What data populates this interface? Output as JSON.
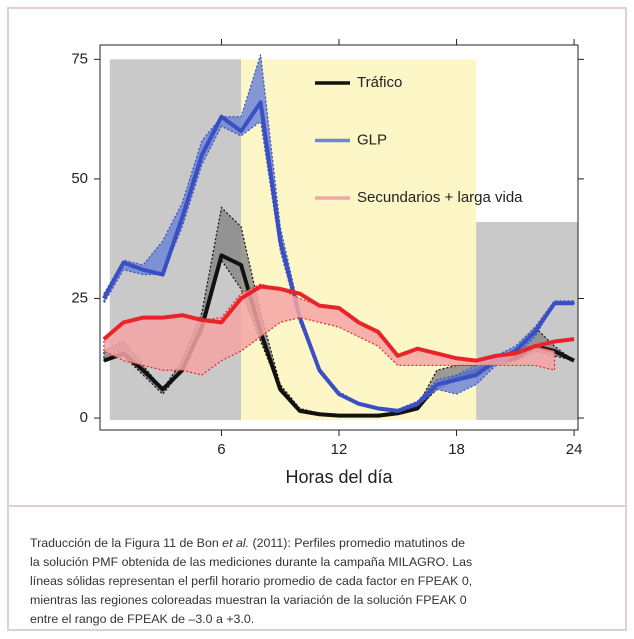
{
  "chart_data": {
    "type": "band-line",
    "x_label": "Horas del día",
    "x": [
      0,
      1,
      2,
      3,
      4,
      5,
      6,
      7,
      8,
      9,
      10,
      11,
      12,
      13,
      14,
      15,
      16,
      17,
      18,
      19,
      20,
      21,
      22,
      23,
      24
    ],
    "xlim": [
      -0.2,
      24.2
    ],
    "xticks": [
      6,
      12,
      18,
      24
    ],
    "ylim": [
      -2.5,
      78
    ],
    "yticks": [
      0,
      25,
      50,
      75
    ],
    "regions": [
      {
        "from": 0.3,
        "to": 7,
        "top": 75,
        "color": "#c9c9c9"
      },
      {
        "from": 7,
        "to": 19,
        "top": 75,
        "color": "#fdf6c6"
      },
      {
        "from": 19,
        "to": 24.2,
        "top": 41,
        "color": "#c9c9c9"
      }
    ],
    "series": [
      {
        "name": "Tráfico",
        "color": "#111111",
        "band_color": "#8a8a8a",
        "values": [
          12,
          13.5,
          10,
          6,
          10,
          19,
          34,
          32,
          18,
          6,
          1.5,
          0.8,
          0.5,
          0.5,
          0.5,
          1,
          2,
          7,
          8.5,
          10,
          12,
          12.5,
          15,
          14,
          12
        ],
        "upper": [
          14,
          16,
          11,
          6,
          12,
          22,
          44,
          40,
          22,
          7,
          2,
          1,
          0.6,
          0.6,
          0.6,
          1.2,
          2.5,
          10,
          11,
          11,
          13,
          14,
          19,
          15,
          12
        ],
        "lower": [
          12,
          13,
          9,
          5,
          10,
          18,
          33,
          27,
          16,
          6,
          1.5,
          0.8,
          0.5,
          0.5,
          0.5,
          1,
          2,
          6,
          8,
          9,
          11,
          12,
          14,
          13,
          12
        ]
      },
      {
        "name": "GLP",
        "color": "#3a4fc1",
        "band_color": "#6f86d6",
        "values": [
          25,
          32.5,
          31,
          30,
          42,
          55,
          63,
          60,
          66,
          37,
          21,
          10,
          5,
          3,
          2,
          1.5,
          3,
          7,
          8,
          9,
          12,
          14,
          18,
          24,
          24
        ],
        "upper": [
          26,
          33,
          32,
          37,
          45,
          58,
          63,
          63,
          76,
          40,
          22,
          10.5,
          5.5,
          3.2,
          2.2,
          1.8,
          3.5,
          8,
          9,
          11,
          13,
          15,
          19,
          24.5,
          24.5
        ],
        "lower": [
          24,
          31,
          30,
          30,
          40,
          53,
          61,
          59,
          62,
          35,
          20,
          9.5,
          4.8,
          2.8,
          1.8,
          1.3,
          2.5,
          6,
          5,
          7,
          11,
          13,
          17,
          24,
          24
        ]
      },
      {
        "name": "Secundarios + larga vida",
        "color": "#e8242a",
        "band_color": "#f5a5a5",
        "values": [
          16.5,
          20,
          21,
          21,
          21.5,
          20.5,
          20,
          25,
          27.5,
          27,
          26,
          23.5,
          23,
          20,
          18,
          13,
          14.5,
          13.5,
          12.5,
          12,
          13,
          13.5,
          15,
          16,
          16.5
        ],
        "upper": [
          16.5,
          20,
          21,
          21,
          21.5,
          20.5,
          21,
          26,
          28,
          27,
          25,
          23.5,
          23,
          20,
          18,
          13,
          14.5,
          13.5,
          12.5,
          12,
          13,
          13.5,
          15,
          14,
          null
        ],
        "lower": [
          14,
          12,
          11,
          10,
          10,
          9,
          12,
          14,
          17,
          20,
          21,
          20,
          19,
          17,
          15,
          11,
          11,
          11,
          11,
          11,
          11,
          11,
          11,
          10,
          null
        ]
      }
    ],
    "caption": [
      [
        "Traducción de la Figura 11 de Bon ",
        "et al.",
        " (2011): Perfiles promedio matutinos de"
      ],
      [
        "la solución PMF obtenida de las mediciones durante la campaña MILAGRO. Las"
      ],
      [
        "líneas sólidas representan el perfil horario promedio de cada factor en FPEAK 0,"
      ],
      [
        "mientras las regiones coloreadas muestran la variación de la solución FPEAK 0"
      ],
      [
        "entre el rango de FPEAK de –3.0 a +3.0."
      ]
    ]
  }
}
